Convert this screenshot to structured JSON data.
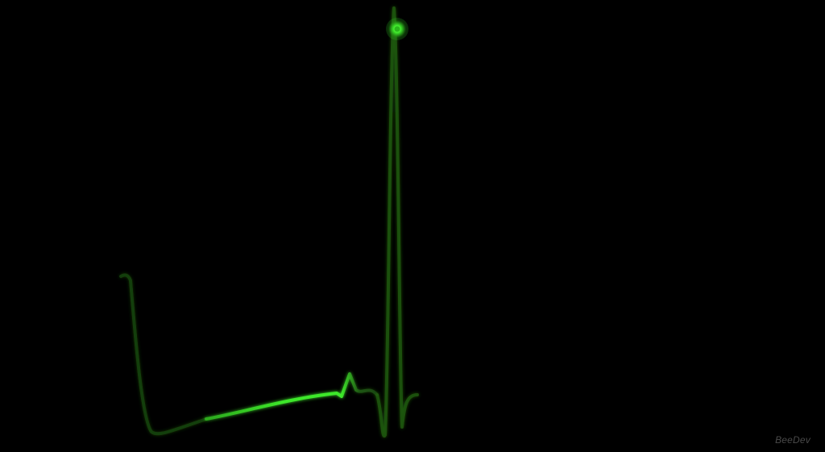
{
  "watermark": "BeeDev",
  "colors": {
    "background": "#000000",
    "trace": "#3ee82a",
    "trace_dim": "#1f5a12",
    "watermark": "#4a4a4a"
  },
  "icons": {
    "cursor": "glowing-dot-icon"
  }
}
